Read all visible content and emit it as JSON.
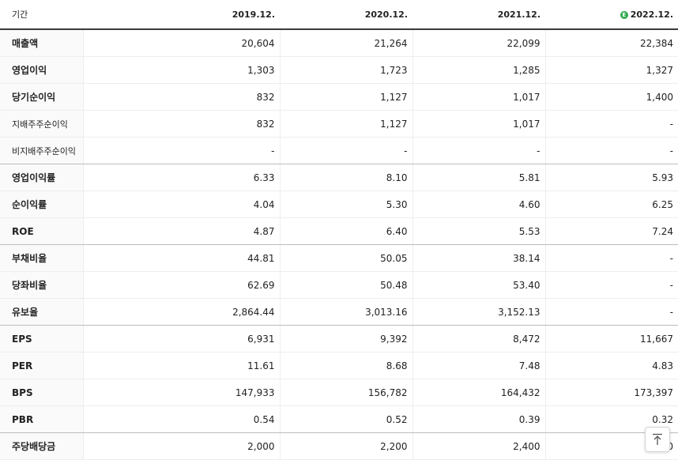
{
  "header": {
    "period_label": "기간",
    "columns": [
      "2019.12.",
      "2020.12.",
      "2021.12.",
      "2022.12."
    ],
    "estimate_badge": "E"
  },
  "rows": [
    {
      "label": "매출액",
      "values": [
        "20,604",
        "21,264",
        "22,099",
        "22,384"
      ]
    },
    {
      "label": "영업이익",
      "values": [
        "1,303",
        "1,723",
        "1,285",
        "1,327"
      ]
    },
    {
      "label": "당기순이익",
      "values": [
        "832",
        "1,127",
        "1,017",
        "1,400"
      ]
    },
    {
      "label": "지배주주순이익",
      "values": [
        "832",
        "1,127",
        "1,017",
        "-"
      ]
    },
    {
      "label": "비지배주주순이익",
      "values": [
        "-",
        "-",
        "-",
        "-"
      ]
    },
    {
      "label": "영업이익률",
      "values": [
        "6.33",
        "8.10",
        "5.81",
        "5.93"
      ]
    },
    {
      "label": "순이익률",
      "values": [
        "4.04",
        "5.30",
        "4.60",
        "6.25"
      ]
    },
    {
      "label": "ROE",
      "values": [
        "4.87",
        "6.40",
        "5.53",
        "7.24"
      ]
    },
    {
      "label": "부채비율",
      "values": [
        "44.81",
        "50.05",
        "38.14",
        "-"
      ]
    },
    {
      "label": "당좌비율",
      "values": [
        "62.69",
        "50.48",
        "53.40",
        "-"
      ]
    },
    {
      "label": "유보율",
      "values": [
        "2,864.44",
        "3,013.16",
        "3,152.13",
        "-"
      ]
    },
    {
      "label": "EPS",
      "values": [
        "6,931",
        "9,392",
        "8,472",
        "11,667"
      ]
    },
    {
      "label": "PER",
      "values": [
        "11.61",
        "8.68",
        "7.48",
        "4.83"
      ]
    },
    {
      "label": "BPS",
      "values": [
        "147,933",
        "156,782",
        "164,432",
        "173,397"
      ]
    },
    {
      "label": "PBR",
      "values": [
        "0.54",
        "0.52",
        "0.39",
        "0.32"
      ]
    },
    {
      "label": "주당배당금",
      "values": [
        "2,000",
        "2,200",
        "2,400",
        "2,600"
      ]
    }
  ],
  "scroll_top": {
    "icon": "arrow-up-to-top-icon"
  }
}
